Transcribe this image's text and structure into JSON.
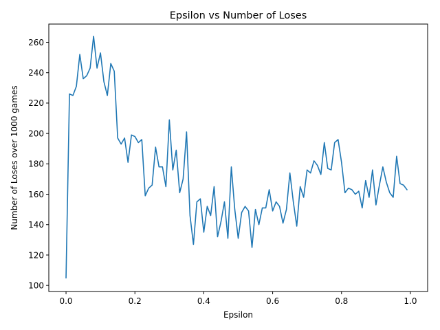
{
  "chart_data": {
    "type": "line",
    "title": "Epsilon vs Number of Loses",
    "xlabel": "Epsilon",
    "ylabel": "Number of Loses over 1000 games",
    "xlim": [
      -0.05,
      1.05
    ],
    "ylim": [
      96,
      272
    ],
    "xticks": [
      0.0,
      0.2,
      0.4,
      0.6,
      0.8,
      1.0
    ],
    "xtick_labels": [
      "0.0",
      "0.2",
      "0.4",
      "0.6",
      "0.8",
      "1.0"
    ],
    "yticks": [
      100,
      120,
      140,
      160,
      180,
      200,
      220,
      240,
      260
    ],
    "ytick_labels": [
      "100",
      "120",
      "140",
      "160",
      "180",
      "200",
      "220",
      "240",
      "260"
    ],
    "grid": false,
    "legend": "none",
    "series": [
      {
        "color": "#1f77b4",
        "x": [
          0.0,
          0.01,
          0.02,
          0.03,
          0.04,
          0.05,
          0.06,
          0.07,
          0.08,
          0.09,
          0.1,
          0.11,
          0.12,
          0.13,
          0.14,
          0.15,
          0.16,
          0.17,
          0.18,
          0.19,
          0.2,
          0.21,
          0.22,
          0.23,
          0.24,
          0.25,
          0.26,
          0.27,
          0.28,
          0.29,
          0.3,
          0.31,
          0.32,
          0.33,
          0.34,
          0.35,
          0.36,
          0.37,
          0.38,
          0.39,
          0.4,
          0.41,
          0.42,
          0.43,
          0.44,
          0.45,
          0.46,
          0.47,
          0.48,
          0.49,
          0.5,
          0.51,
          0.52,
          0.53,
          0.54,
          0.55,
          0.56,
          0.57,
          0.58,
          0.59,
          0.6,
          0.61,
          0.62,
          0.63,
          0.64,
          0.65,
          0.66,
          0.67,
          0.68,
          0.69,
          0.7,
          0.71,
          0.72,
          0.73,
          0.74,
          0.75,
          0.76,
          0.77,
          0.78,
          0.79,
          0.8,
          0.81,
          0.82,
          0.83,
          0.84,
          0.85,
          0.86,
          0.87,
          0.88,
          0.89,
          0.9,
          0.91,
          0.92,
          0.93,
          0.94,
          0.95,
          0.96,
          0.97,
          0.98,
          0.99
        ],
        "y": [
          105,
          226,
          225,
          231,
          252,
          236,
          238,
          243,
          264,
          243,
          253,
          234,
          225,
          246,
          241,
          197,
          193,
          197,
          181,
          199,
          198,
          194,
          196,
          159,
          164,
          166,
          191,
          178,
          178,
          165,
          209,
          176,
          189,
          161,
          170,
          201,
          146,
          127,
          155,
          157,
          135,
          152,
          146,
          165,
          132,
          142,
          155,
          131,
          178,
          150,
          131,
          148,
          152,
          149,
          125,
          150,
          140,
          151,
          151,
          163,
          149,
          155,
          152,
          141,
          150,
          174,
          155,
          139,
          165,
          158,
          176,
          174,
          182,
          179,
          173,
          194,
          177,
          176,
          194,
          196,
          181,
          161,
          164,
          163,
          160,
          162,
          151,
          169,
          158,
          176,
          153,
          166,
          178,
          168,
          161,
          158,
          185,
          167,
          166,
          163
        ]
      }
    ]
  }
}
